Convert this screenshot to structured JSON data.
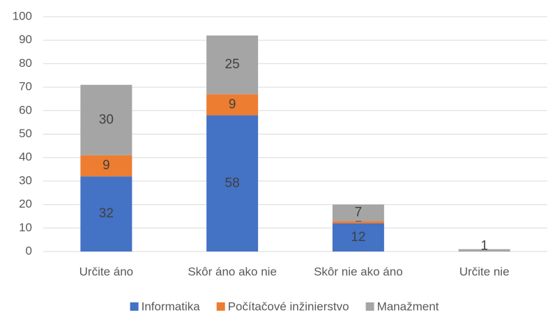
{
  "chart_data": {
    "type": "stacked_bar",
    "categories": [
      "Určite áno",
      "Skôr áno ako nie",
      "Skôr nie ako áno",
      "Určite nie"
    ],
    "series": [
      {
        "name": "Informatika",
        "color": "#4472c4",
        "values": [
          32,
          58,
          12,
          0
        ]
      },
      {
        "name": "Počítačové inžinierstvo",
        "color": "#ed7d31",
        "values": [
          9,
          9,
          1,
          0
        ]
      },
      {
        "name": "Manažment",
        "color": "#a5a5a5",
        "values": [
          30,
          25,
          7,
          1
        ]
      }
    ],
    "ylim": [
      0,
      100
    ],
    "yticks": [
      0,
      10,
      20,
      30,
      40,
      50,
      60,
      70,
      80,
      90,
      100
    ],
    "grid": true,
    "legend": "bottom"
  }
}
